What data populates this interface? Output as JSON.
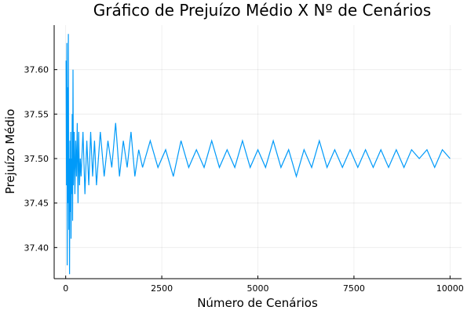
{
  "chart_data": {
    "type": "line",
    "title": "Gráfico de Prejuízo Médio X Nº de Cenários",
    "xlabel": "Número de Cenários",
    "ylabel": "Prejuízo Médio",
    "xlim": [
      -300,
      10300
    ],
    "ylim": [
      37.365,
      37.65
    ],
    "xticks": [
      0,
      2500,
      5000,
      7500,
      10000
    ],
    "xtick_labels": [
      "0",
      "2500",
      "5000",
      "7500",
      "10000"
    ],
    "yticks": [
      37.4,
      37.45,
      37.5,
      37.55,
      37.6
    ],
    "ytick_labels": [
      "37.40",
      "37.45",
      "37.50",
      "37.55",
      "37.60"
    ],
    "grid": true,
    "legend": "none",
    "series_color": "#009AF9",
    "series": [
      {
        "x": [
          10,
          20,
          30,
          40,
          50,
          60,
          70,
          80,
          90,
          100,
          110,
          120,
          130,
          140,
          150,
          160,
          170,
          180,
          190,
          200,
          220,
          240,
          260,
          280,
          300,
          320,
          340,
          360,
          380,
          400,
          450,
          500,
          550,
          600,
          650,
          700,
          750,
          800,
          900,
          1000,
          1100,
          1200,
          1300,
          1400,
          1500,
          1600,
          1700,
          1800,
          1900,
          2000,
          2200,
          2400,
          2600,
          2800,
          3000,
          3200,
          3400,
          3600,
          3800,
          4000,
          4200,
          4400,
          4600,
          4800,
          5000,
          5200,
          5400,
          5600,
          5800,
          6000,
          6200,
          6400,
          6600,
          6800,
          7000,
          7200,
          7400,
          7600,
          7800,
          8000,
          8200,
          8400,
          8600,
          8800,
          9000,
          9200,
          9400,
          9600,
          9800,
          10000
        ],
        "y": [
          37.61,
          37.47,
          37.63,
          37.38,
          37.58,
          37.45,
          37.64,
          37.42,
          37.5,
          37.37,
          37.52,
          37.44,
          37.53,
          37.41,
          37.5,
          37.46,
          37.55,
          37.43,
          37.6,
          37.47,
          37.53,
          37.46,
          37.52,
          37.48,
          37.54,
          37.45,
          37.53,
          37.47,
          37.5,
          37.48,
          37.53,
          37.46,
          37.52,
          37.47,
          37.53,
          37.48,
          37.52,
          37.47,
          37.53,
          37.48,
          37.52,
          37.49,
          37.54,
          37.48,
          37.52,
          37.49,
          37.53,
          37.48,
          37.51,
          37.49,
          37.52,
          37.49,
          37.51,
          37.48,
          37.52,
          37.49,
          37.51,
          37.49,
          37.52,
          37.49,
          37.51,
          37.49,
          37.52,
          37.49,
          37.51,
          37.49,
          37.52,
          37.49,
          37.51,
          37.48,
          37.51,
          37.49,
          37.52,
          37.49,
          37.51,
          37.49,
          37.51,
          37.49,
          37.51,
          37.49,
          37.51,
          37.49,
          37.51,
          37.49,
          37.51,
          37.5,
          37.51,
          37.49,
          37.51,
          37.5
        ]
      }
    ]
  }
}
